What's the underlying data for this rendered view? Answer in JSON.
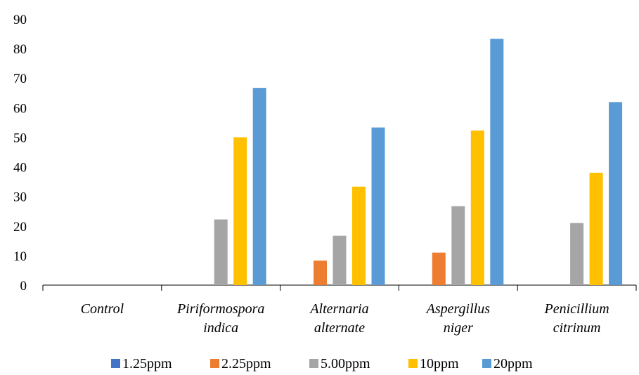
{
  "chart_data": {
    "type": "bar",
    "categories": [
      [
        "Control"
      ],
      [
        "Piriformospora",
        "indica"
      ],
      [
        "Alternaria",
        "alternate"
      ],
      [
        "Aspergillus",
        "niger"
      ],
      [
        "Penicillium",
        "citrinum"
      ]
    ],
    "series": [
      {
        "name": "1.25ppm",
        "color": "#4472C4",
        "values": [
          0,
          0,
          0,
          0,
          0
        ]
      },
      {
        "name": "2.25ppm",
        "color": "#ED7D31",
        "values": [
          0,
          0,
          8.3,
          11,
          0
        ]
      },
      {
        "name": "5.00ppm",
        "color": "#A5A5A5",
        "values": [
          0,
          22.2,
          16.7,
          26.7,
          21
        ]
      },
      {
        "name": "10ppm",
        "color": "#FFC000",
        "values": [
          0,
          50,
          33.3,
          52.3,
          38
        ]
      },
      {
        "name": "20ppm",
        "color": "#5B9BD5",
        "values": [
          0,
          66.7,
          53.3,
          83.3,
          61.9
        ]
      }
    ],
    "y_ticks": [
      "0",
      "10",
      "20",
      "30",
      "40",
      "50",
      "60",
      "70",
      "80",
      "90"
    ],
    "ylim": [
      0,
      90
    ],
    "grid": false,
    "legend_position": "bottom"
  }
}
